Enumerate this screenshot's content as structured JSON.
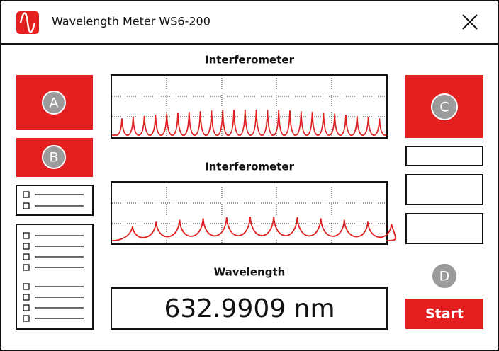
{
  "header": {
    "title": "Wavelength Meter WS6-200"
  },
  "panels": [
    {
      "title": "Interferometer"
    },
    {
      "title": "Interferometer"
    }
  ],
  "wavelength": {
    "title": "Wavelength",
    "value": "632.9909 nm"
  },
  "markers": {
    "a": "A",
    "b": "B",
    "c": "C",
    "d": "D"
  },
  "buttons": {
    "start": "Start"
  }
}
